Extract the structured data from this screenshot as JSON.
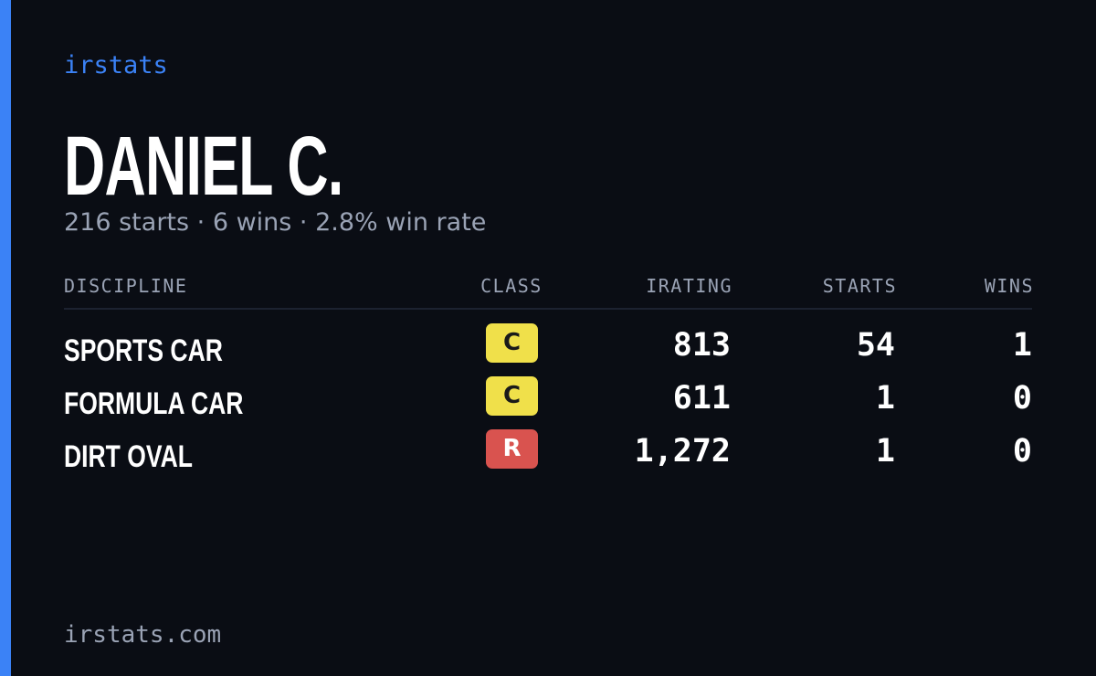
{
  "brand": "irstats",
  "name": "DANIEL C.",
  "subtitle": "216 starts · 6 wins · 2.8% win rate",
  "table": {
    "headers": [
      "DISCIPLINE",
      "CLASS",
      "IRATING",
      "STARTS",
      "WINS"
    ],
    "rows": [
      [
        "SPORTS CAR",
        "C",
        "813",
        "54",
        "1"
      ],
      [
        "FORMULA CAR",
        "C",
        "611",
        "1",
        "0"
      ],
      [
        "DIRT OVAL",
        "R",
        "1,272",
        "1",
        "0"
      ]
    ]
  },
  "footer": "irstats.com"
}
